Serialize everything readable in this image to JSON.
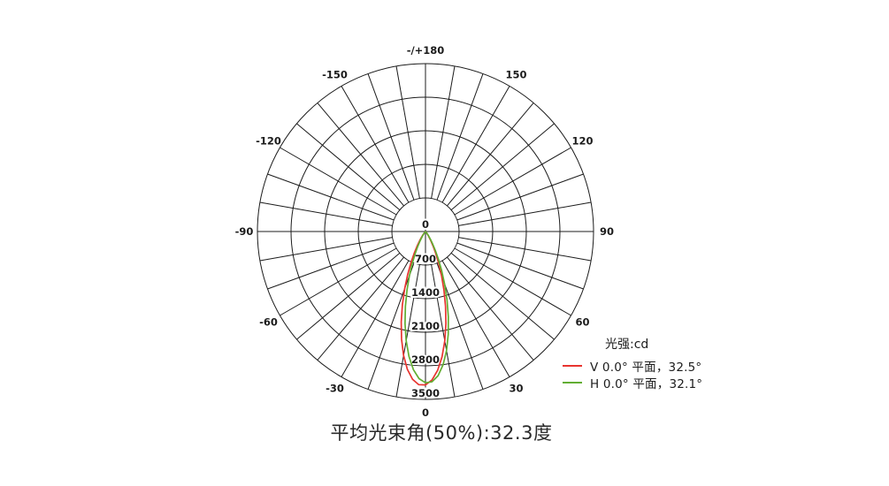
{
  "colors": {
    "grid": "#1c1c1c",
    "label": "#1c1c1c",
    "series_v": "#e8342f",
    "series_h": "#62ae32",
    "background": "#ffffff"
  },
  "chart_data": {
    "type": "polar-line",
    "title": "平均光束角(50%):32.3度",
    "legend_title": "光强:cd",
    "unit": "cd",
    "rmax": 3500,
    "radial_ticks": [
      0,
      700,
      1400,
      2100,
      2800,
      3500
    ],
    "angle_tick_step_deg": 10,
    "angle_labels": [
      {
        "deg": 0,
        "label": "0"
      },
      {
        "deg": 30,
        "label": "30"
      },
      {
        "deg": 60,
        "label": "60"
      },
      {
        "deg": 90,
        "label": "90"
      },
      {
        "deg": 120,
        "label": "120"
      },
      {
        "deg": 150,
        "label": "150"
      },
      {
        "deg": 180,
        "label": "-/+180"
      },
      {
        "deg": -150,
        "label": "-150"
      },
      {
        "deg": -120,
        "label": "-120"
      },
      {
        "deg": -90,
        "label": "-90"
      },
      {
        "deg": -60,
        "label": "-60"
      },
      {
        "deg": -30,
        "label": "-30"
      }
    ],
    "series": [
      {
        "name": "V 0.0° 平面，32.5°",
        "plane": "V",
        "beam_angle_deg": 32.5,
        "peak_cd": 3198,
        "color": "#e8342f",
        "points": [
          [
            -40,
            45
          ],
          [
            -37.5,
            82
          ],
          [
            -35,
            138
          ],
          [
            -32.5,
            220
          ],
          [
            -30,
            340
          ],
          [
            -27.5,
            502
          ],
          [
            -25,
            708
          ],
          [
            -22.5,
            964
          ],
          [
            -20,
            1264
          ],
          [
            -17.5,
            1598
          ],
          [
            -15,
            1951
          ],
          [
            -12.5,
            2301
          ],
          [
            -10,
            2625
          ],
          [
            -7.5,
            2896
          ],
          [
            -5,
            3092
          ],
          [
            -2.5,
            3196
          ],
          [
            0,
            3198
          ],
          [
            2.5,
            3098
          ],
          [
            5,
            2905
          ],
          [
            7.5,
            2637
          ],
          [
            10,
            2315
          ],
          [
            12.5,
            1965
          ],
          [
            15,
            1612
          ],
          [
            17.5,
            1277
          ],
          [
            20,
            976
          ],
          [
            22.5,
            718
          ],
          [
            25,
            511
          ],
          [
            27.5,
            345
          ],
          [
            30,
            226
          ],
          [
            32.5,
            141
          ],
          [
            35,
            84
          ],
          [
            37.5,
            48
          ],
          [
            40,
            25
          ]
        ]
      },
      {
        "name": "H 0.0° 平面，32.1°",
        "plane": "H",
        "beam_angle_deg": 32.1,
        "peak_cd": 3154,
        "color": "#62ae32",
        "points": [
          [
            -40,
            24
          ],
          [
            -37.5,
            46
          ],
          [
            -35,
            82
          ],
          [
            -32.5,
            139
          ],
          [
            -30,
            223
          ],
          [
            -27.5,
            343
          ],
          [
            -25,
            506
          ],
          [
            -22.5,
            717
          ],
          [
            -20,
            975
          ],
          [
            -17.5,
            1278
          ],
          [
            -15,
            1615
          ],
          [
            -12.5,
            1967
          ],
          [
            -10,
            2313
          ],
          [
            -7.5,
            2629
          ],
          [
            -5,
            2890
          ],
          [
            -2.5,
            3070
          ],
          [
            0,
            3154
          ],
          [
            2.5,
            3136
          ],
          [
            5,
            3016
          ],
          [
            7.5,
            2804
          ],
          [
            10,
            2522
          ],
          [
            12.5,
            2192
          ],
          [
            15,
            1839
          ],
          [
            17.5,
            1490
          ],
          [
            20,
            1164
          ],
          [
            22.5,
            877
          ],
          [
            25,
            635
          ],
          [
            27.5,
            442
          ],
          [
            30,
            296
          ],
          [
            32.5,
            189
          ],
          [
            35,
            115
          ],
          [
            37.5,
            67
          ],
          [
            40,
            37
          ]
        ]
      }
    ]
  }
}
